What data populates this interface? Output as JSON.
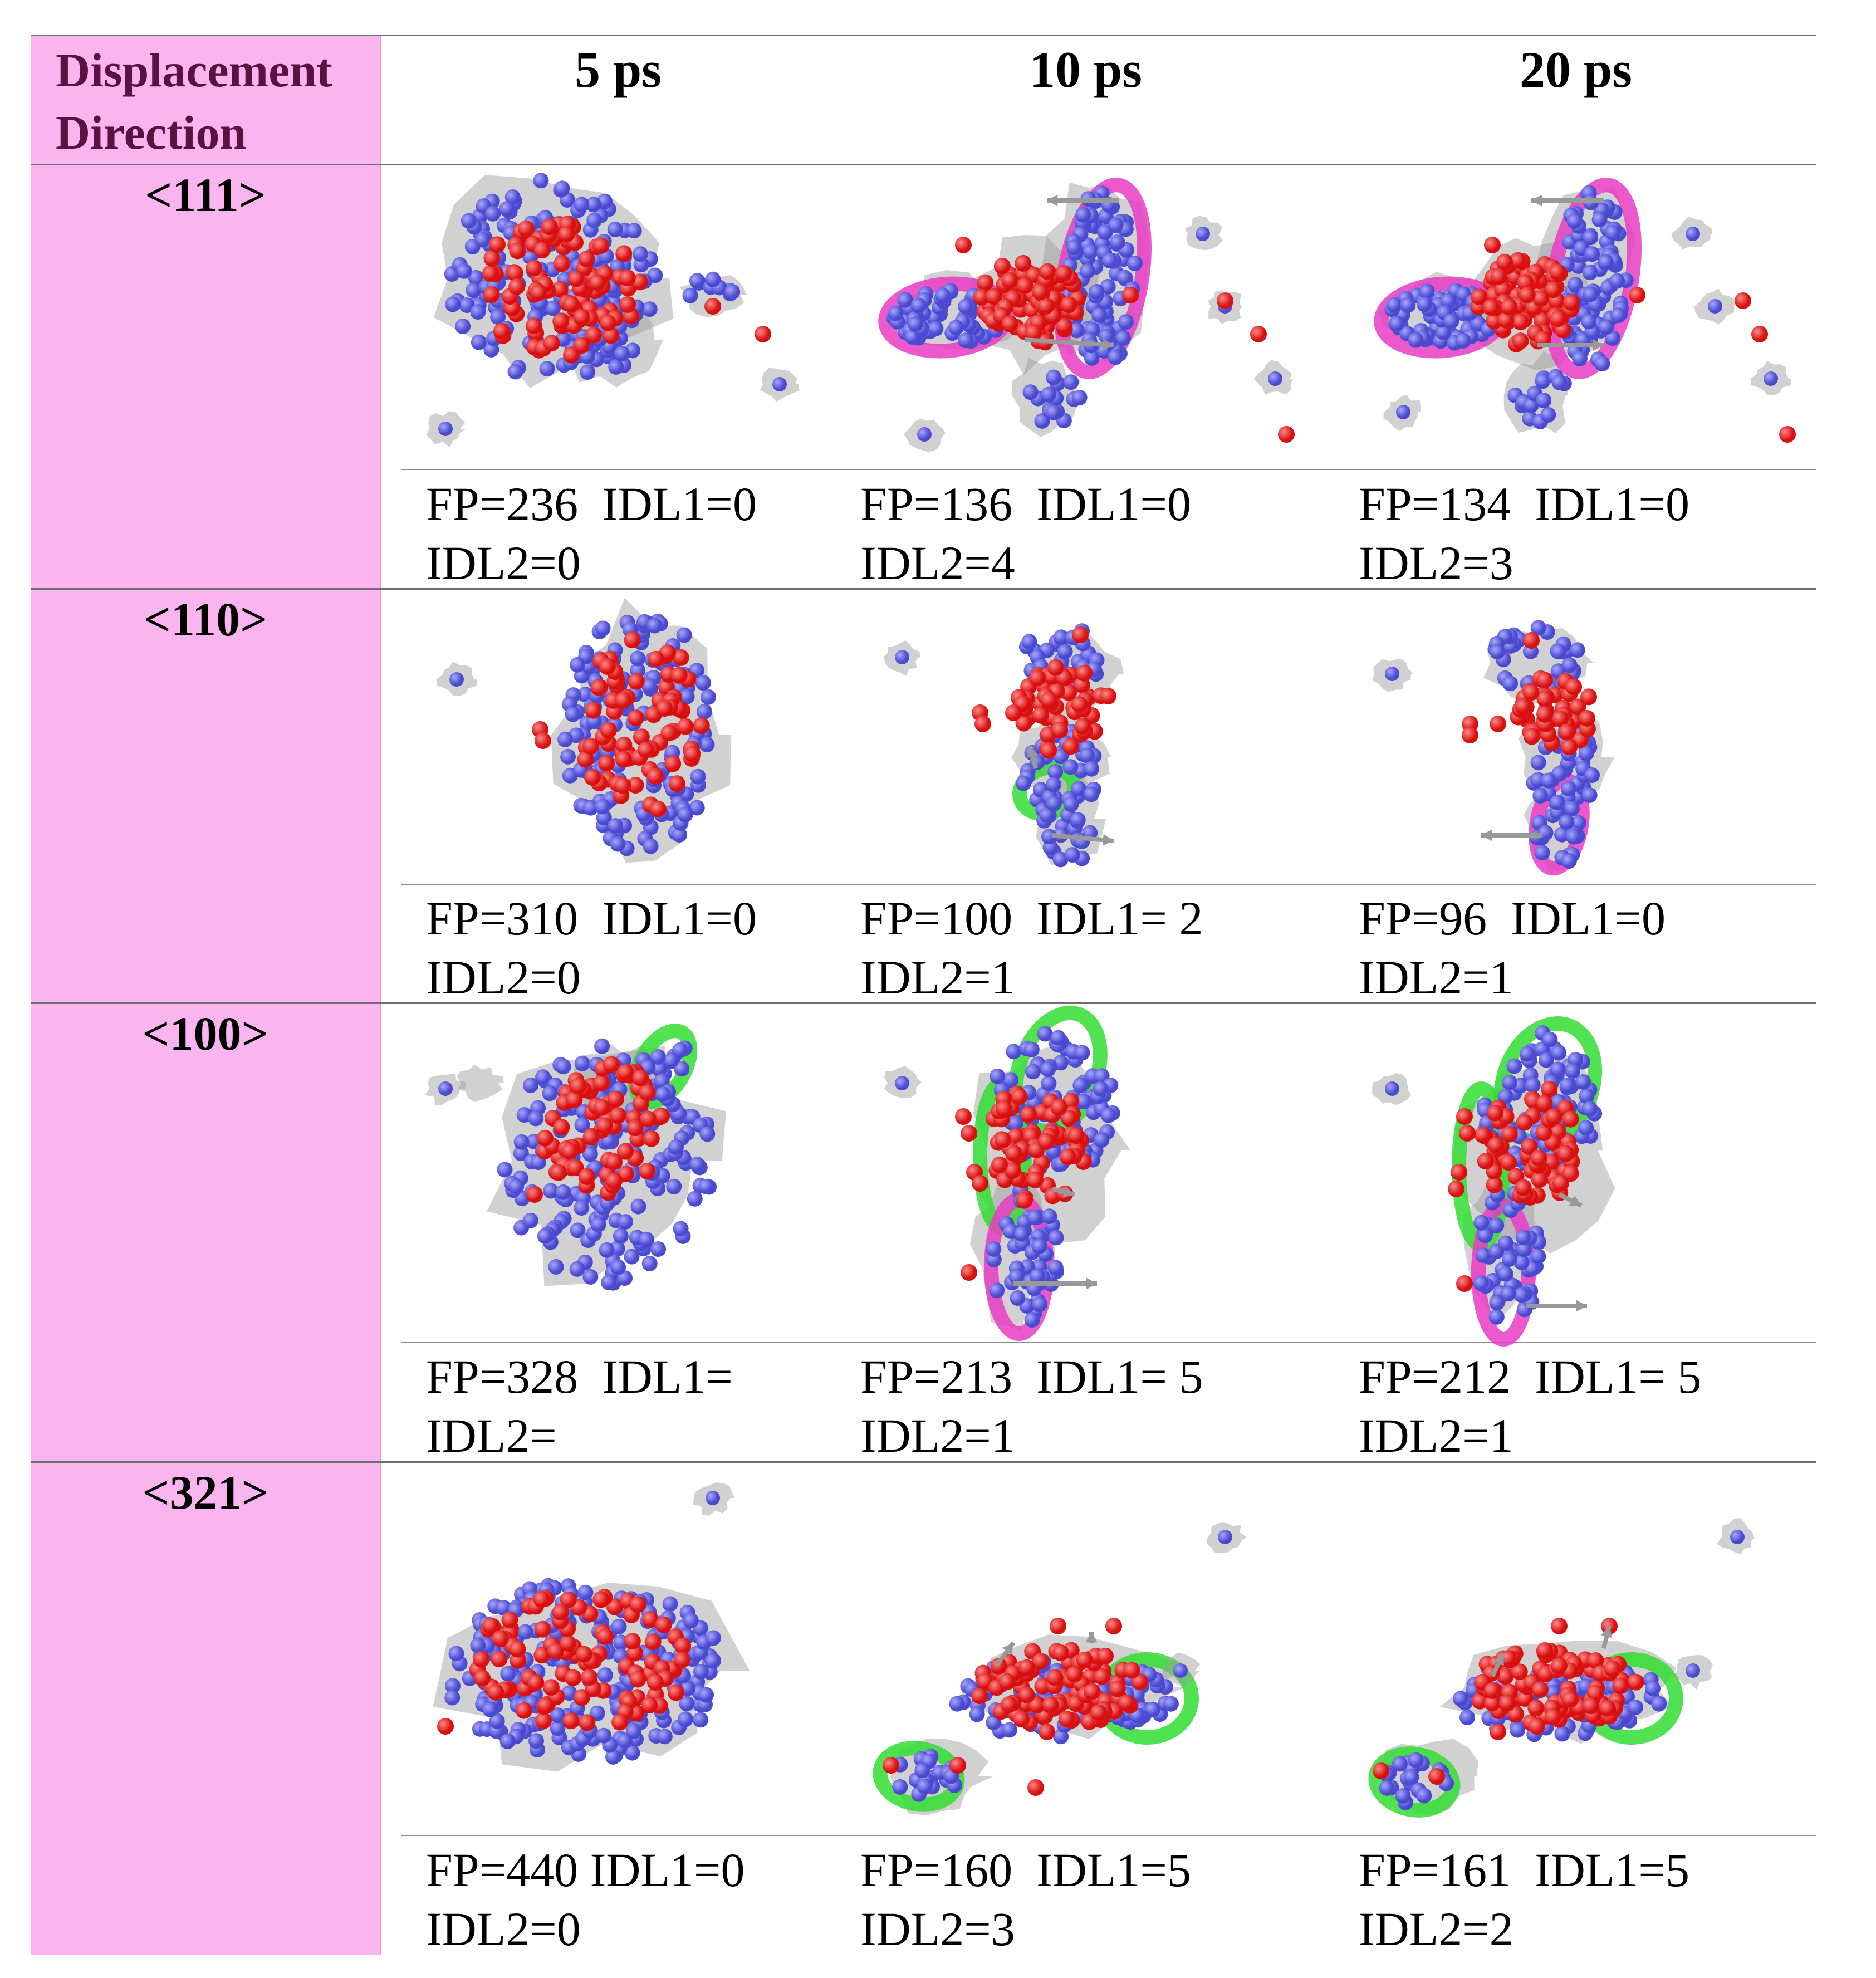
{
  "header": {
    "first_col_line1": "Displacement",
    "first_col_line2": "Direction",
    "times": [
      "5 ps",
      "10 ps",
      "20 ps"
    ]
  },
  "rows": [
    {
      "direction": "<111>",
      "cells": [
        {
          "line1": "FP=236  IDL1=0",
          "line2": "IDL2=0"
        },
        {
          "line1": "FP=136  IDL1=0",
          "line2": "IDL2=4"
        },
        {
          "line1": "FP=134  IDL1=0",
          "line2": "IDL2=3"
        }
      ]
    },
    {
      "direction": "<110>",
      "cells": [
        {
          "line1": "FP=310  IDL1=0",
          "line2": "IDL2=0"
        },
        {
          "line1": "FP=100  IDL1= 2",
          "line2": "IDL2=1"
        },
        {
          "line1": "FP=96  IDL1=0",
          "line2": "IDL2=1"
        }
      ]
    },
    {
      "direction": "<100>",
      "cells": [
        {
          "line1": "FP=328  IDL1=",
          "line2": "IDL2="
        },
        {
          "line1": "FP=213  IDL1= 5",
          "line2": "IDL2=1"
        },
        {
          "line1": "FP=212  IDL1= 5",
          "line2": "IDL2=1"
        }
      ]
    },
    {
      "direction": "<321>",
      "cells": [
        {
          "line1": "FP=440 IDL1=0",
          "line2": "IDL2=0"
        },
        {
          "line1": "FP=160  IDL1=5",
          "line2": "IDL2=3"
        },
        {
          "line1": "FP=161  IDL1=5",
          "line2": "IDL2=2"
        }
      ]
    }
  ],
  "colors": {
    "header_pink": "#fbb5ee",
    "header_text": "#5a1242",
    "vacancy": "#ee2222",
    "interstitial": "#6f6fe6",
    "surface_gray": "#9a9a9a",
    "loop_magenta": "#e83cc4",
    "loop_green": "#33dd33"
  }
}
